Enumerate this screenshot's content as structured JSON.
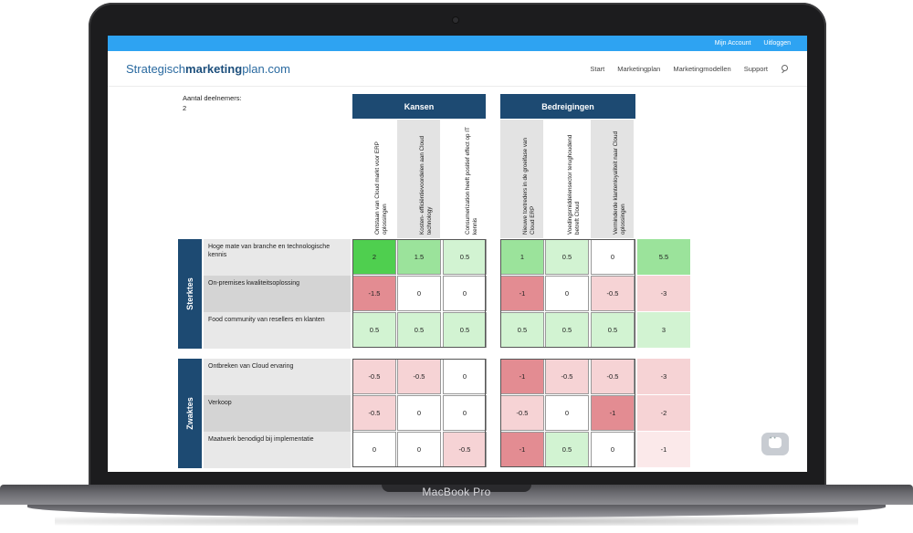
{
  "device_label": "MacBook Pro",
  "topbar": {
    "account": "Mijn Account",
    "logout": "Uitloggen"
  },
  "logo": {
    "part1": "Strategisch",
    "part2": "marketing",
    "part3": "plan.com"
  },
  "nav": [
    "Start",
    "Marketingplan",
    "Marketingmodellen",
    "Support"
  ],
  "participants": {
    "label": "Aantal deelnemers:",
    "count": "2"
  },
  "groups": {
    "opportunities": "Kansen",
    "threats": "Bedreigingen"
  },
  "columns": [
    "Ontstaan van Cloud markt voor ERP oplossingen",
    "Kosten- efficiëntievoordelen aan Cloud technology",
    "Consumerization heeft positief effect op IT kennis",
    "Nieuwe toetreders in de groeifase van Cloud ERP",
    "Voedingsmiddelensector terughoudend betreft Cloud",
    "Verminderde klantenloyaliteit naar Cloud oplossingen"
  ],
  "sections": [
    {
      "label": "Sterktes",
      "rows": [
        {
          "label": "Hoge mate van branche en technologische kennis",
          "values": [
            "2",
            "1.5",
            "0.5",
            "1",
            "0.5",
            "0"
          ],
          "total": "5.5"
        },
        {
          "label": "On-premises kwaliteitsoplossing",
          "values": [
            "-1.5",
            "0",
            "0",
            "-1",
            "0",
            "-0.5"
          ],
          "total": "-3"
        },
        {
          "label": "Food community van resellers en klanten",
          "values": [
            "0.5",
            "0.5",
            "0.5",
            "0.5",
            "0.5",
            "0.5"
          ],
          "total": "3"
        }
      ]
    },
    {
      "label": "Zwaktes",
      "rows": [
        {
          "label": "Ontbreken van Cloud ervaring",
          "values": [
            "-0.5",
            "-0.5",
            "0",
            "-1",
            "-0.5",
            "-0.5"
          ],
          "total": "-3"
        },
        {
          "label": "Verkoop",
          "values": [
            "-0.5",
            "0",
            "0",
            "-0.5",
            "0",
            "-1"
          ],
          "total": "-2"
        },
        {
          "label": "Maatwerk benodigd bij implementatie",
          "values": [
            "0",
            "0",
            "-0.5",
            "-1",
            "0.5",
            "0"
          ],
          "total": "-1"
        }
      ]
    }
  ],
  "colors": {
    "brand_blue": "#1d4a72",
    "topbar_blue": "#2ea3f2",
    "green_strong": "#4fcf4f",
    "green_mid": "#9be39b",
    "green_light": "#d2f3d2",
    "red_strong": "#e38c92",
    "red_mid": "#eeb1b5",
    "red_light": "#f6d3d5",
    "neutral": "#ffffff"
  }
}
